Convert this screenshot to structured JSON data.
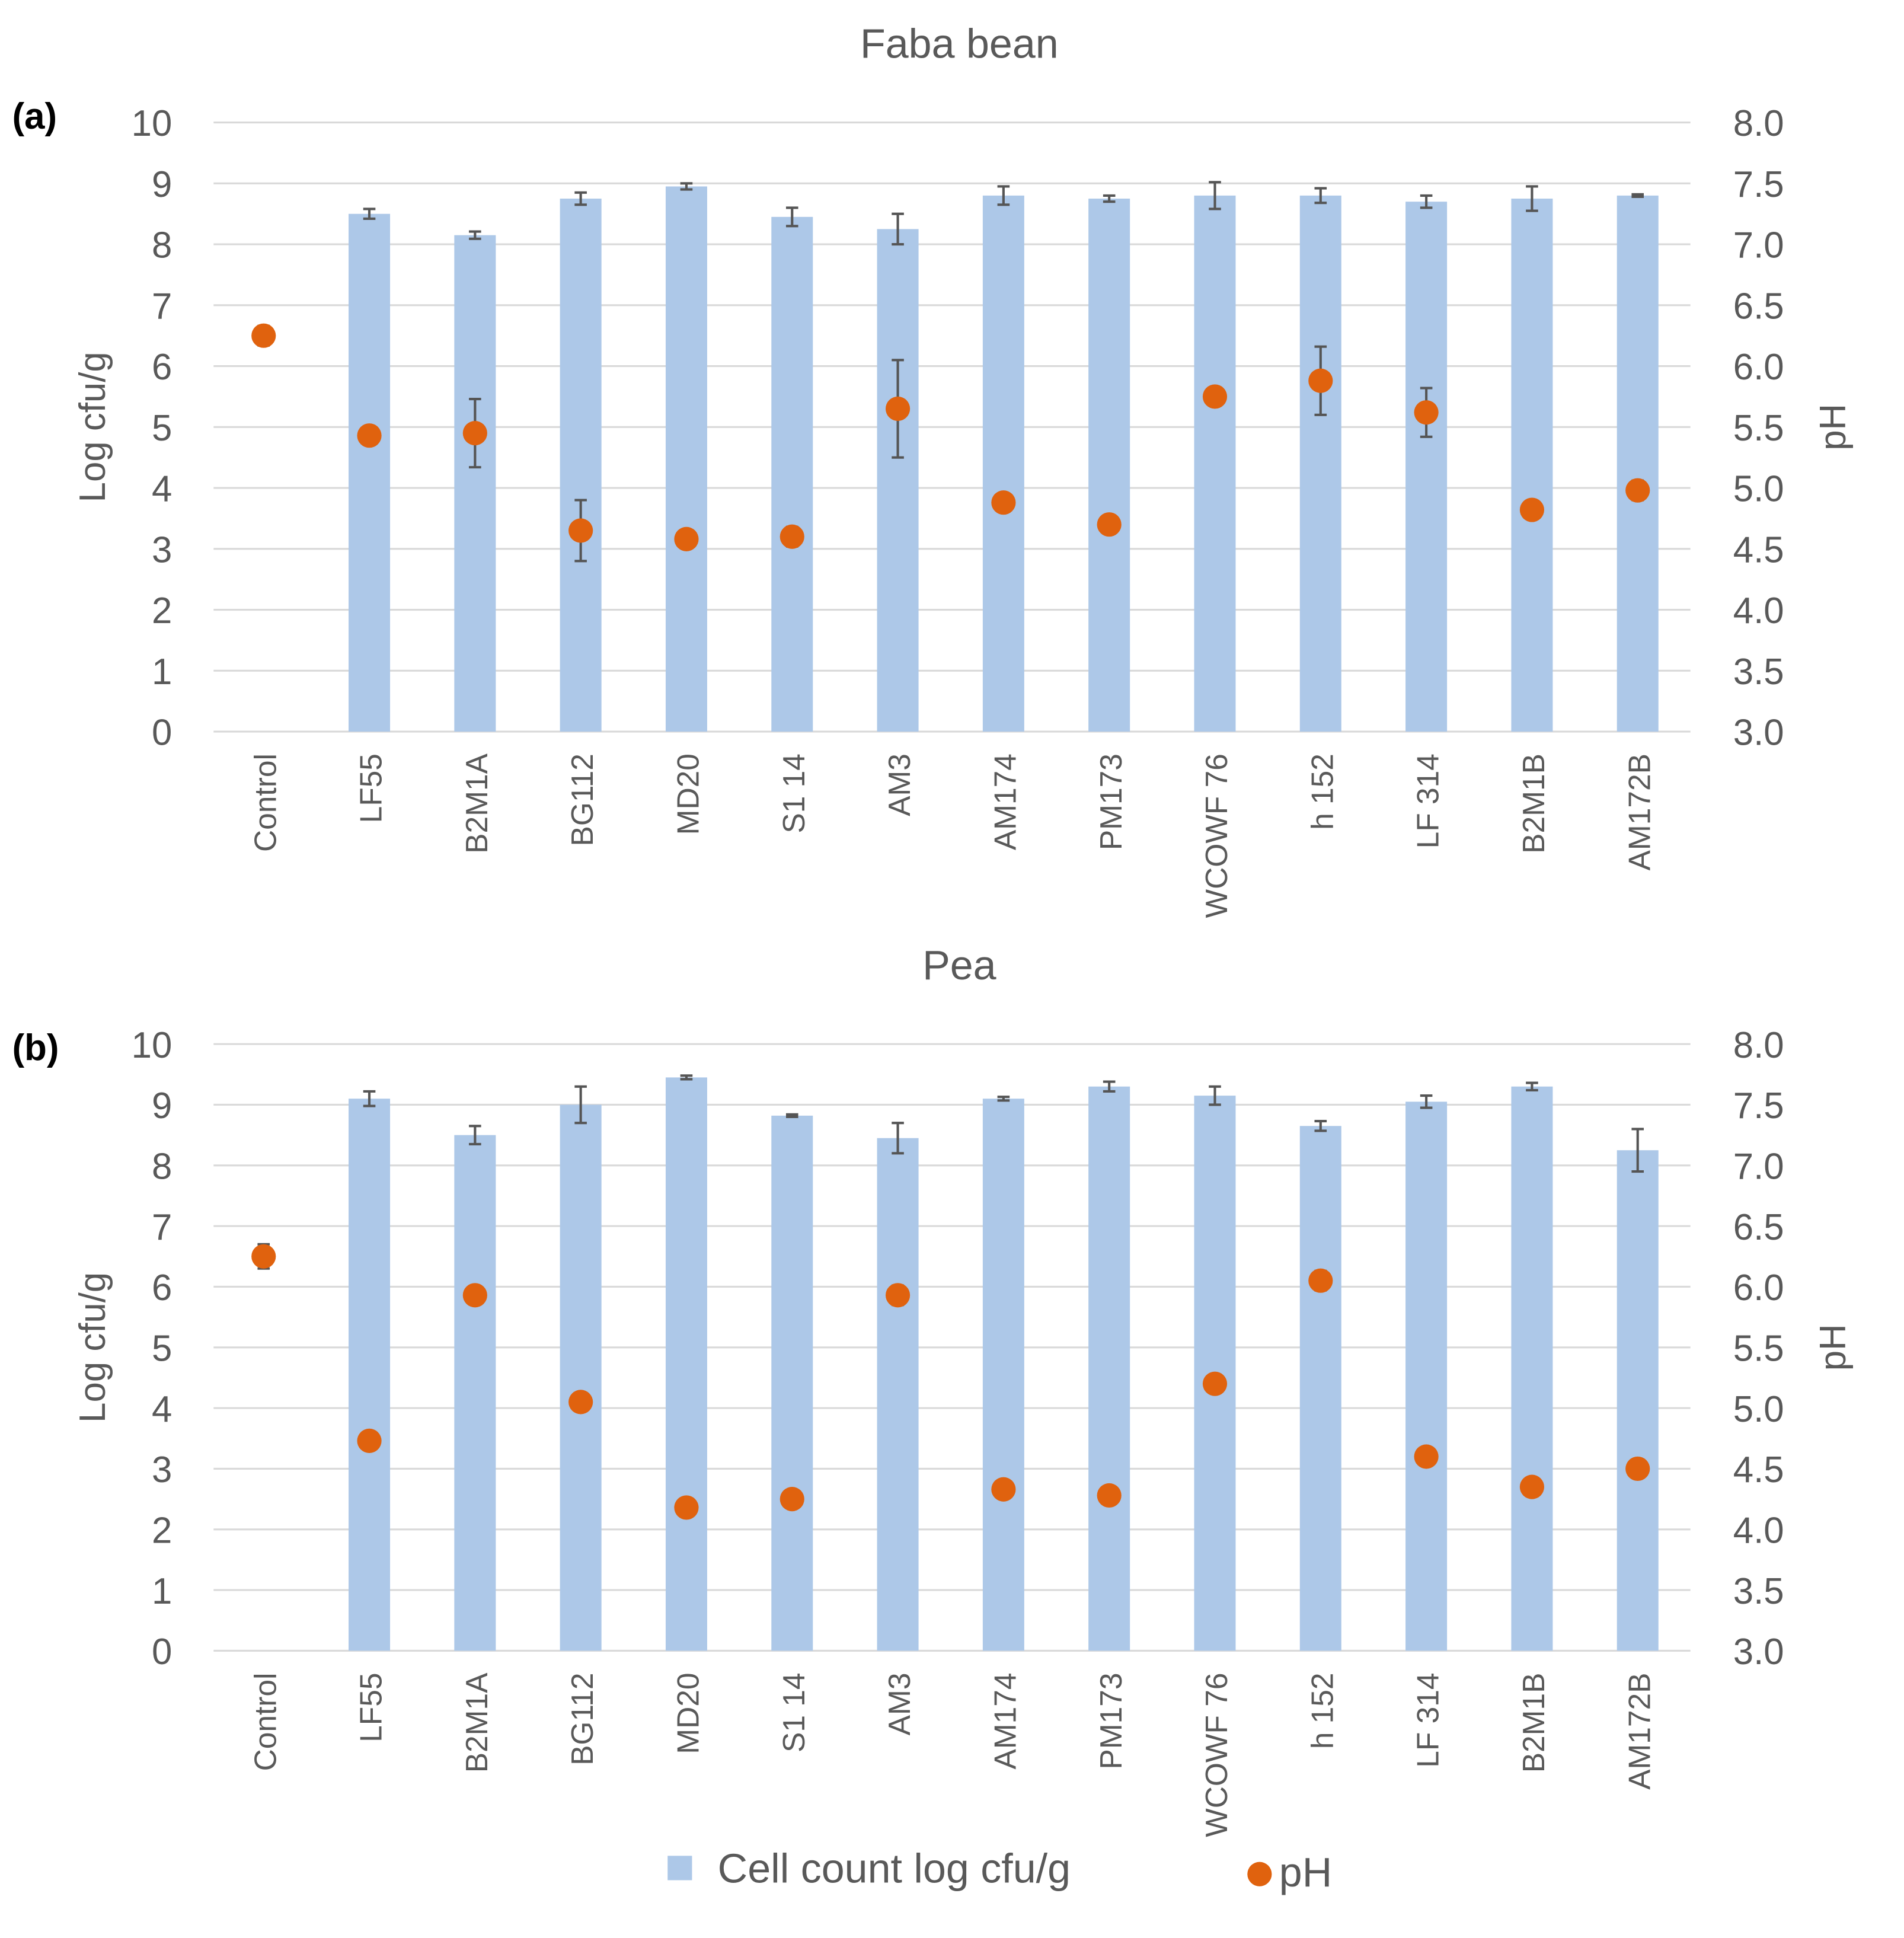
{
  "legend": {
    "bar": "Cell count log cfu/g",
    "dot": "pH"
  },
  "colors": {
    "bar": "#adc8e8",
    "dot": "#e0620e",
    "err": "#555555",
    "grid": "#d9d9d9"
  },
  "chart_data": [
    {
      "type": "bar+scatter",
      "panel": "(a)",
      "title": "Faba bean",
      "ylabel": "Log cfu/g",
      "y2label": "pH",
      "ylim": [
        0,
        10
      ],
      "y2lim": [
        3.0,
        8.0
      ],
      "yticks": [
        "0",
        "1",
        "2",
        "3",
        "4",
        "5",
        "6",
        "7",
        "8",
        "9",
        "10"
      ],
      "y2ticks": [
        "3.0",
        "3.5",
        "4.0",
        "4.5",
        "5.0",
        "5.5",
        "6.0",
        "6.5",
        "7.0",
        "7.5",
        "8.0"
      ],
      "categories": [
        "Control",
        "LF55",
        "B2M1A",
        "BG112",
        "MD20",
        "S1 14",
        "AM3",
        "AM174",
        "PM173",
        "WCOWF 76",
        "h 152",
        "LF 314",
        "B2M1B",
        "AM172B"
      ],
      "cell_count": [
        null,
        8.5,
        8.15,
        8.75,
        8.95,
        8.45,
        8.25,
        8.8,
        8.75,
        8.8,
        8.8,
        8.7,
        8.75,
        8.8
      ],
      "cell_count_err": [
        null,
        0.08,
        0.06,
        0.1,
        0.05,
        0.15,
        0.25,
        0.15,
        0.05,
        0.22,
        0.12,
        0.1,
        0.2,
        0.02
      ],
      "pH": [
        6.25,
        5.43,
        5.45,
        4.65,
        4.58,
        4.6,
        5.65,
        4.88,
        4.7,
        5.75,
        5.88,
        5.62,
        4.82,
        4.98
      ],
      "pH_err": [
        0.08,
        0.03,
        0.28,
        0.25,
        0.03,
        0.08,
        0.4,
        0.03,
        0.03,
        0.03,
        0.28,
        0.2,
        0.03,
        0.08
      ]
    },
    {
      "type": "bar+scatter",
      "panel": "(b)",
      "title": "Pea",
      "ylabel": "Log cfu/g",
      "y2label": "pH",
      "ylim": [
        0,
        10
      ],
      "y2lim": [
        3.0,
        8.0
      ],
      "yticks": [
        "0",
        "1",
        "2",
        "3",
        "4",
        "5",
        "6",
        "7",
        "8",
        "9",
        "10"
      ],
      "y2ticks": [
        "3.0",
        "3.5",
        "4.0",
        "4.5",
        "5.0",
        "5.5",
        "6.0",
        "6.5",
        "7.0",
        "7.5",
        "8.0"
      ],
      "categories": [
        "Control",
        "LF55",
        "B2M1A",
        "BG112",
        "MD20",
        "S1 14",
        "AM3",
        "AM174",
        "PM173",
        "WCOWF 76",
        "h 152",
        "LF 314",
        "B2M1B",
        "AM172B"
      ],
      "cell_count": [
        null,
        9.1,
        8.5,
        9.0,
        9.45,
        8.82,
        8.45,
        9.1,
        9.3,
        9.15,
        8.65,
        9.05,
        9.3,
        8.25
      ],
      "cell_count_err": [
        null,
        0.12,
        0.15,
        0.3,
        0.03,
        0.02,
        0.25,
        0.03,
        0.08,
        0.15,
        0.08,
        0.1,
        0.06,
        0.35
      ],
      "pH": [
        6.25,
        4.73,
        5.93,
        5.05,
        4.18,
        4.25,
        5.93,
        4.33,
        4.28,
        5.2,
        6.05,
        4.6,
        4.35,
        4.5
      ],
      "pH_err": [
        0.1,
        0.03,
        0.03,
        0.03,
        0.03,
        0.03,
        0.08,
        0.03,
        0.03,
        0.03,
        0.08,
        0.03,
        0.03,
        0.03
      ]
    }
  ]
}
